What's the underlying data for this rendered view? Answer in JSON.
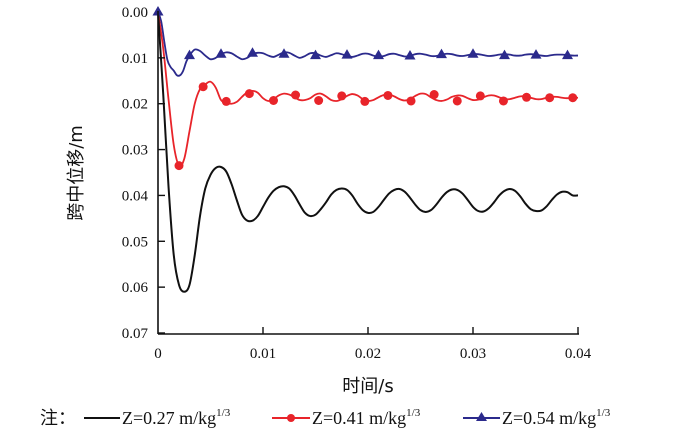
{
  "chart_data": {
    "type": "line",
    "title": "",
    "xlabel": "时间/s",
    "ylabel": "跨中位移/m",
    "xlim": [
      0,
      0.04
    ],
    "ylim": [
      0,
      0.07
    ],
    "y_inverted": true,
    "grid": false,
    "x_ticks": [
      "0",
      "0.01",
      "0.02",
      "0.03",
      "0.04"
    ],
    "y_ticks": [
      "0.00",
      "0.01",
      "0.02",
      "0.03",
      "0.04",
      "0.05",
      "0.06",
      "0.07"
    ],
    "legend": {
      "note": "注：",
      "placement": "bottom",
      "entries": [
        {
          "label": "Z=0.27 m/kg",
          "sup": "1/3"
        },
        {
          "label": "Z=0.41 m/kg",
          "sup": "1/3"
        },
        {
          "label": "Z=0.54 m/kg",
          "sup": "1/3"
        }
      ]
    },
    "series": [
      {
        "name": "Z=0.27 m/kg1/3",
        "color": "#111111",
        "marker": "none",
        "x": [
          0,
          0.0005,
          0.001,
          0.0015,
          0.002,
          0.0025,
          0.003,
          0.0035,
          0.004,
          0.0045,
          0.005,
          0.0055,
          0.006,
          0.0065,
          0.007,
          0.0075,
          0.008,
          0.0085,
          0.009,
          0.0095,
          0.01,
          0.0105,
          0.011,
          0.0115,
          0.012,
          0.0125,
          0.013,
          0.0135,
          0.014,
          0.0145,
          0.015,
          0.0155,
          0.016,
          0.0165,
          0.017,
          0.0175,
          0.018,
          0.0185,
          0.019,
          0.0195,
          0.02,
          0.0205,
          0.021,
          0.0215,
          0.022,
          0.0225,
          0.023,
          0.0235,
          0.024,
          0.0245,
          0.025,
          0.0255,
          0.026,
          0.0265,
          0.027,
          0.0275,
          0.028,
          0.0285,
          0.029,
          0.0295,
          0.03,
          0.0305,
          0.031,
          0.0315,
          0.032,
          0.0325,
          0.033,
          0.0335,
          0.034,
          0.0345,
          0.035,
          0.0355,
          0.036,
          0.0365,
          0.037,
          0.0375,
          0.038,
          0.0385,
          0.039,
          0.0395,
          0.04
        ],
        "y": [
          0,
          0.018,
          0.038,
          0.053,
          0.0595,
          0.061,
          0.0595,
          0.053,
          0.0445,
          0.0385,
          0.0355,
          0.034,
          0.0338,
          0.0348,
          0.0375,
          0.041,
          0.0442,
          0.0455,
          0.0455,
          0.0445,
          0.0425,
          0.0405,
          0.039,
          0.0382,
          0.038,
          0.0385,
          0.04,
          0.042,
          0.0438,
          0.0445,
          0.0442,
          0.043,
          0.0415,
          0.0398,
          0.0388,
          0.0385,
          0.0388,
          0.04,
          0.0418,
          0.0432,
          0.0438,
          0.0436,
          0.0425,
          0.041,
          0.0396,
          0.0388,
          0.0386,
          0.0392,
          0.0405,
          0.042,
          0.0432,
          0.0436,
          0.0432,
          0.042,
          0.0405,
          0.0393,
          0.0387,
          0.0388,
          0.0396,
          0.041,
          0.0425,
          0.0434,
          0.0435,
          0.0428,
          0.0415,
          0.04,
          0.039,
          0.0386,
          0.039,
          0.0402,
          0.0418,
          0.043,
          0.0434,
          0.0433,
          0.0424,
          0.041,
          0.0398,
          0.0392,
          0.0393,
          0.04,
          0.04
        ]
      },
      {
        "name": "Z=0.41 m/kg1/3",
        "color": "#e8242a",
        "marker": "circle",
        "x": [
          0,
          0.0005,
          0.001,
          0.0015,
          0.002,
          0.0025,
          0.003,
          0.0035,
          0.004,
          0.0045,
          0.005,
          0.0055,
          0.006,
          0.0065,
          0.007,
          0.0075,
          0.008,
          0.0085,
          0.009,
          0.0095,
          0.01,
          0.0105,
          0.011,
          0.0115,
          0.012,
          0.0125,
          0.013,
          0.0135,
          0.014,
          0.0145,
          0.015,
          0.0155,
          0.016,
          0.0165,
          0.017,
          0.0175,
          0.018,
          0.0185,
          0.019,
          0.0195,
          0.02,
          0.0205,
          0.021,
          0.0215,
          0.022,
          0.0225,
          0.023,
          0.0235,
          0.024,
          0.0245,
          0.025,
          0.0255,
          0.026,
          0.0265,
          0.027,
          0.0275,
          0.028,
          0.0285,
          0.029,
          0.0295,
          0.03,
          0.0305,
          0.031,
          0.0315,
          0.032,
          0.0325,
          0.033,
          0.0335,
          0.034,
          0.0345,
          0.035,
          0.0355,
          0.036,
          0.0365,
          0.037,
          0.0375,
          0.038,
          0.0385,
          0.039,
          0.0395,
          0.04
        ],
        "y": [
          0,
          0.008,
          0.019,
          0.029,
          0.0335,
          0.032,
          0.026,
          0.02,
          0.0168,
          0.0158,
          0.0152,
          0.0165,
          0.0192,
          0.0198,
          0.02,
          0.0196,
          0.0185,
          0.0175,
          0.0172,
          0.0176,
          0.0188,
          0.0194,
          0.019,
          0.0182,
          0.0178,
          0.018,
          0.0186,
          0.0192,
          0.0192,
          0.0188,
          0.018,
          0.0178,
          0.0184,
          0.0192,
          0.0194,
          0.019,
          0.0183,
          0.0179,
          0.0182,
          0.019,
          0.0194,
          0.0192,
          0.0186,
          0.0181,
          0.018,
          0.0184,
          0.019,
          0.0193,
          0.019,
          0.0183,
          0.0178,
          0.0179,
          0.0186,
          0.0192,
          0.0194,
          0.0191,
          0.0185,
          0.0182,
          0.0183,
          0.0188,
          0.0192,
          0.0191,
          0.0186,
          0.0182,
          0.0182,
          0.0186,
          0.019,
          0.019,
          0.0187,
          0.0184,
          0.0184,
          0.0187,
          0.019,
          0.019,
          0.0187,
          0.0185,
          0.0185,
          0.0187,
          0.0188,
          0.0187,
          0.0187
        ],
        "markers_x": [
          0.002,
          0.0043,
          0.0065,
          0.0087,
          0.011,
          0.0131,
          0.0153,
          0.0175,
          0.0197,
          0.0219,
          0.0241,
          0.0263,
          0.0285,
          0.0307,
          0.0329,
          0.0351,
          0.0373,
          0.0395
        ],
        "markers_y": [
          0.0335,
          0.0163,
          0.0195,
          0.0178,
          0.0193,
          0.0181,
          0.0193,
          0.0183,
          0.0195,
          0.0182,
          0.0194,
          0.018,
          0.0194,
          0.0183,
          0.0194,
          0.0186,
          0.0187,
          0.0187
        ]
      },
      {
        "name": "Z=0.54 m/kg1/3",
        "color": "#2b2a8c",
        "marker": "triangle",
        "x": [
          0,
          0.0003,
          0.0006,
          0.0009,
          0.0012,
          0.0015,
          0.0018,
          0.0021,
          0.0024,
          0.0027,
          0.003,
          0.0035,
          0.004,
          0.0045,
          0.005,
          0.0055,
          0.006,
          0.0065,
          0.007,
          0.0075,
          0.008,
          0.0085,
          0.009,
          0.0095,
          0.01,
          0.0105,
          0.011,
          0.0115,
          0.012,
          0.0125,
          0.013,
          0.0135,
          0.014,
          0.0145,
          0.015,
          0.0155,
          0.016,
          0.0165,
          0.017,
          0.0175,
          0.018,
          0.0185,
          0.019,
          0.0195,
          0.02,
          0.0205,
          0.021,
          0.0215,
          0.022,
          0.0225,
          0.023,
          0.0235,
          0.024,
          0.0245,
          0.025,
          0.0255,
          0.026,
          0.0265,
          0.027,
          0.0275,
          0.028,
          0.0285,
          0.029,
          0.0295,
          0.03,
          0.0305,
          0.031,
          0.0315,
          0.032,
          0.0325,
          0.033,
          0.0335,
          0.034,
          0.0345,
          0.035,
          0.0355,
          0.036,
          0.0365,
          0.037,
          0.0375,
          0.038,
          0.0385,
          0.039,
          0.0395,
          0.04
        ],
        "y": [
          0,
          0.002,
          0.0065,
          0.0105,
          0.012,
          0.0128,
          0.0138,
          0.0138,
          0.0128,
          0.0108,
          0.0095,
          0.0082,
          0.0085,
          0.0095,
          0.0103,
          0.01,
          0.0092,
          0.0088,
          0.009,
          0.0097,
          0.0103,
          0.01,
          0.0092,
          0.0089,
          0.009,
          0.0095,
          0.0098,
          0.0093,
          0.0088,
          0.0089,
          0.0095,
          0.01,
          0.0096,
          0.009,
          0.009,
          0.0095,
          0.0098,
          0.0094,
          0.009,
          0.0092,
          0.0096,
          0.0098,
          0.0095,
          0.0091,
          0.0091,
          0.0095,
          0.0098,
          0.0096,
          0.0092,
          0.0091,
          0.0094,
          0.0097,
          0.0096,
          0.0092,
          0.0091,
          0.0093,
          0.0096,
          0.0096,
          0.0093,
          0.0091,
          0.0092,
          0.0095,
          0.0096,
          0.0094,
          0.0092,
          0.0092,
          0.0094,
          0.0096,
          0.0095,
          0.0093,
          0.0092,
          0.0093,
          0.0095,
          0.0095,
          0.0093,
          0.0092,
          0.0093,
          0.0095,
          0.0096,
          0.0094,
          0.0093,
          0.0093,
          0.0094,
          0.0095,
          0.0095
        ],
        "markers_x": [
          0.0,
          0.003,
          0.006,
          0.009,
          0.012,
          0.015,
          0.018,
          0.021,
          0.024,
          0.027,
          0.03,
          0.033,
          0.036,
          0.039
        ],
        "markers_y": [
          0.0,
          0.0095,
          0.0092,
          0.009,
          0.0092,
          0.0095,
          0.0094,
          0.0095,
          0.0096,
          0.0093,
          0.0092,
          0.0095,
          0.0094,
          0.0095
        ]
      }
    ]
  }
}
